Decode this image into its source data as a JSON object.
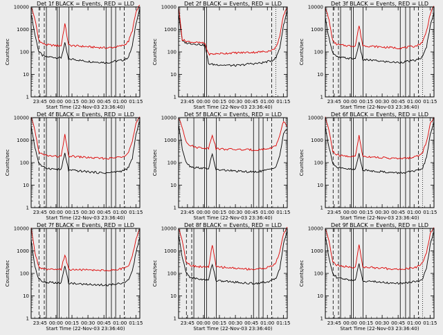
{
  "chart_data": {
    "type": "line",
    "grid_layout": "3x3",
    "colors": {
      "events": "#000000",
      "lld": "#dd0000",
      "background": "#ececec",
      "axes": "#000000"
    },
    "y_scale": "log",
    "ylim": [
      1,
      10000
    ],
    "ytick_labels": [
      "1",
      "10",
      "100",
      "1000",
      "10000"
    ],
    "xtick_labels": [
      "23:45",
      "00:00",
      "00:15",
      "00:30",
      "00:45",
      "01:00",
      "01:15"
    ],
    "xlabel": "Start Time (22-Nov-03 23:36:40)",
    "ylabel": "Counts/sec",
    "panels": [
      {
        "title": "Det 1f BLACK = Events, RED = LLD",
        "series": [
          {
            "name": "BLACK = Events",
            "values": [
              5000,
              600,
              110,
              70,
              60,
              60,
              58,
              55,
              55,
              240,
              45,
              48,
              45,
              42,
              40,
              38,
              37,
              36,
              35,
              35,
              33,
              34,
              38,
              40,
              42,
              45,
              60,
              180,
              2000,
              8000
            ]
          },
          {
            "name": "RED = LLD",
            "values": [
              10000,
              3000,
              350,
              240,
              210,
              200,
              195,
              190,
              190,
              1800,
              200,
              190,
              185,
              180,
              175,
              170,
              165,
              160,
              158,
              155,
              150,
              155,
              160,
              170,
              185,
              210,
              300,
              900,
              6000,
              12000
            ]
          }
        ],
        "dashed_x": [
          "23:44",
          "23:49",
          "01:04"
        ],
        "solid_x": [
          "23:51",
          "00:01",
          "00:03",
          "00:12",
          "00:47",
          "00:52",
          "00:56"
        ],
        "dotted_x": []
      },
      {
        "title": "Det 2f BLACK = Events, RED = LLD",
        "series": [
          {
            "name": "BLACK = Events",
            "values": [
              5000,
              300,
              250,
              240,
              230,
              220,
              210,
              200,
              30,
              28,
              27,
              27,
              26,
              26,
              25,
              25,
              25,
              26,
              28,
              30,
              30,
              31,
              32,
              35,
              38,
              42,
              55,
              150,
              1500,
              7000
            ]
          },
          {
            "name": "RED = LLD",
            "values": [
              10000,
              350,
              300,
              280,
              270,
              260,
              250,
              240,
              80,
              80,
              82,
              85,
              85,
              88,
              90,
              90,
              92,
              92,
              95,
              95,
              96,
              98,
              100,
              105,
              110,
              120,
              160,
              500,
              4000,
              10000
            ]
          }
        ],
        "dashed_x": [
          "01:04"
        ],
        "solid_x": [
          "00:01",
          "00:03"
        ],
        "dotted_x": [
          "01:08"
        ]
      },
      {
        "title": "Det 3f BLACK = Events, RED = LLD",
        "series": [
          {
            "name": "BLACK = Events",
            "values": [
              3000,
              400,
              90,
              60,
              55,
              55,
              52,
              50,
              50,
              250,
              45,
              44,
              43,
              42,
              40,
              38,
              37,
              36,
              35,
              34,
              34,
              36,
              38,
              40,
              42,
              48,
              62,
              170,
              1400,
              6000
            ]
          },
          {
            "name": "RED = LLD",
            "values": [
              10000,
              2500,
              300,
              220,
              200,
              195,
              190,
              185,
              185,
              1500,
              190,
              185,
              180,
              175,
              170,
              165,
              160,
              158,
              155,
              150,
              150,
              155,
              162,
              170,
              182,
              210,
              290,
              850,
              5000,
              11000
            ]
          }
        ],
        "dashed_x": [
          "23:44",
          "23:49",
          "01:04"
        ],
        "solid_x": [
          "23:51",
          "00:01",
          "00:03",
          "00:12",
          "00:47",
          "00:52",
          "00:56"
        ],
        "dotted_x": [
          "01:08"
        ]
      },
      {
        "title": "Det 4f BLACK = Events, RED = LLD",
        "series": [
          {
            "name": "BLACK = Events",
            "values": [
              4000,
              500,
              100,
              65,
              58,
              55,
              52,
              50,
              50,
              260,
              46,
              45,
              44,
              42,
              41,
              40,
              38,
              37,
              36,
              35,
              35,
              36,
              38,
              40,
              42,
              46,
              60,
              160,
              1800,
              7000
            ]
          },
          {
            "name": "RED = LLD",
            "values": [
              10000,
              2800,
              320,
              230,
              210,
              200,
              195,
              190,
              188,
              1700,
              195,
              190,
              185,
              180,
              175,
              170,
              165,
              160,
              158,
              155,
              152,
              156,
              162,
              172,
              185,
              212,
              300,
              880,
              5500,
              11000
            ]
          }
        ],
        "dashed_x": [
          "23:44",
          "23:49",
          "01:04"
        ],
        "solid_x": [
          "23:51",
          "00:01",
          "00:03",
          "00:12",
          "00:47",
          "00:52",
          "00:56"
        ],
        "dotted_x": []
      },
      {
        "title": "Det 5f BLACK = Events, RED = LLD",
        "series": [
          {
            "name": "BLACK = Events",
            "values": [
              5000,
              400,
              110,
              70,
              62,
              60,
              58,
              55,
              55,
              240,
              48,
              47,
              46,
              45,
              44,
              42,
              41,
              40,
              40,
              39,
              38,
              40,
              42,
              45,
              48,
              55,
              70,
              200,
              2000,
              3000
            ]
          },
          {
            "name": "RED = LLD",
            "values": [
              10000,
              3500,
              900,
              600,
              520,
              480,
              460,
              450,
              440,
              1800,
              420,
              410,
              400,
              395,
              390,
              385,
              380,
              378,
              375,
              372,
              370,
              375,
              385,
              400,
              420,
              460,
              600,
              1500,
              7000,
              4000
            ]
          }
        ],
        "dashed_x": [
          "01:04"
        ],
        "solid_x": [
          "23:51",
          "00:01",
          "00:03",
          "00:12",
          "00:47",
          "00:52",
          "00:56"
        ],
        "dotted_x": []
      },
      {
        "title": "Det 6f BLACK = Events, RED = LLD",
        "series": [
          {
            "name": "BLACK = Events",
            "values": [
              4000,
              450,
              100,
              62,
              56,
              54,
              52,
              50,
              50,
              250,
              46,
              45,
              44,
              42,
              41,
              40,
              38,
              37,
              36,
              35,
              35,
              36,
              38,
              40,
              42,
              46,
              60,
              165,
              1700,
              6500
            ]
          },
          {
            "name": "RED = LLD",
            "values": [
              10000,
              2700,
              310,
              225,
              205,
              198,
              192,
              188,
              186,
              1600,
              192,
              188,
              183,
              178,
              173,
              168,
              163,
              159,
              156,
              153,
              150,
              155,
              161,
              170,
              183,
              210,
              295,
              870,
              5300,
              10500
            ]
          }
        ],
        "dashed_x": [
          "23:44",
          "23:49",
          "01:04"
        ],
        "solid_x": [
          "23:51",
          "00:01",
          "00:03",
          "00:12",
          "00:47",
          "00:52",
          "00:56"
        ],
        "dotted_x": [
          "01:08"
        ]
      },
      {
        "title": "Det 7f BLACK = Events, RED = LLD",
        "series": [
          {
            "name": "BLACK = Events",
            "values": [
              3000,
              200,
              60,
              42,
              40,
              40,
              38,
              37,
              37,
              220,
              38,
              36,
              35,
              34,
              33,
              33,
              32,
              32,
              31,
              31,
              30,
              31,
              33,
              35,
              37,
              40,
              50,
              120,
              900,
              4000
            ]
          },
          {
            "name": "RED = LLD",
            "values": [
              10000,
              900,
              200,
              160,
              150,
              148,
              146,
              145,
              145,
              700,
              150,
              148,
              146,
              145,
              143,
              142,
              140,
              140,
              138,
              138,
              137,
              140,
              145,
              150,
              158,
              175,
              230,
              600,
              3500,
              9000
            ]
          }
        ],
        "dashed_x": [
          "23:44",
          "23:49",
          "01:04"
        ],
        "solid_x": [
          "23:51",
          "00:01",
          "00:03",
          "00:12",
          "00:47",
          "00:52",
          "00:56"
        ],
        "dotted_x": []
      },
      {
        "title": "Det 8f BLACK = Events, RED = LLD",
        "series": [
          {
            "name": "BLACK = Events",
            "values": [
              5000,
              500,
              110,
              70,
              62,
              58,
              55,
              52,
              52,
              270,
              48,
              46,
              45,
              44,
              42,
              41,
              40,
              38,
              37,
              36,
              36,
              37,
              39,
              41,
              44,
              48,
              62,
              170,
              2000,
              7500
            ]
          },
          {
            "name": "RED = LLD",
            "values": [
              10000,
              3000,
              340,
              240,
              215,
              205,
              198,
              192,
              190,
              1900,
              196,
              191,
              186,
              181,
              176,
              171,
              166,
              162,
              158,
              155,
              152,
              157,
              164,
              174,
              188,
              216,
              305,
              900,
              5800,
              11500
            ]
          }
        ],
        "dashed_x": [
          "23:44",
          "23:49",
          "01:04"
        ],
        "solid_x": [
          "23:51",
          "00:01",
          "00:03",
          "00:12",
          "00:47",
          "00:52",
          "00:56"
        ],
        "dotted_x": []
      },
      {
        "title": "Det 9f BLACK = Events, RED = LLD",
        "series": [
          {
            "name": "BLACK = Events",
            "values": [
              4500,
              480,
              105,
              66,
              58,
              56,
              53,
              51,
              51,
              255,
              47,
              46,
              45,
              43,
              42,
              41,
              39,
              38,
              37,
              36,
              36,
              37,
              39,
              41,
              43,
              47,
              61,
              168,
              1900,
              7000
            ]
          },
          {
            "name": "RED = LLD",
            "values": [
              10000,
              2900,
              330,
              235,
              212,
              202,
              196,
              190,
              188,
              1750,
              194,
              189,
              184,
              179,
              174,
              169,
              164,
              160,
              157,
              154,
              151,
              156,
              163,
              172,
              186,
              214,
              300,
              890,
              5600,
              11000
            ]
          }
        ],
        "dashed_x": [
          "23:44",
          "23:49",
          "01:04"
        ],
        "solid_x": [
          "23:51",
          "00:01",
          "00:03",
          "00:12",
          "00:47",
          "00:52",
          "00:56"
        ],
        "dotted_x": [
          "01:08"
        ]
      }
    ]
  }
}
